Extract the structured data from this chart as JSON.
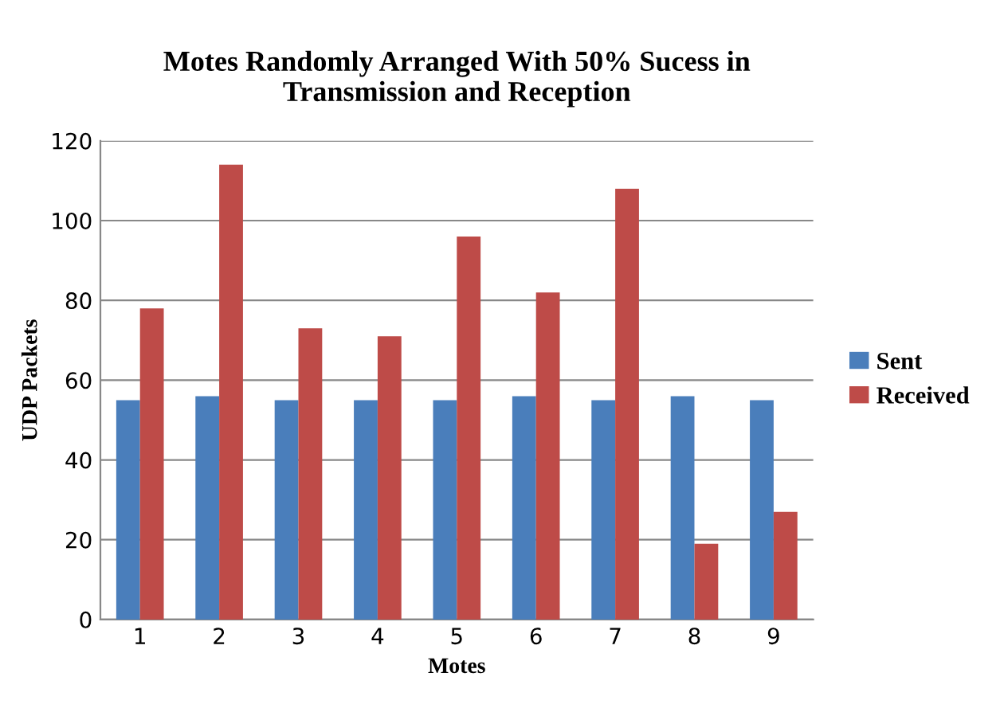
{
  "chart_data": {
    "type": "bar",
    "title": "Motes Randomly Arranged With 50% Sucess in\nTransmission and Reception",
    "xlabel": "Motes",
    "ylabel": "UDP Packets",
    "categories": [
      "1",
      "2",
      "3",
      "4",
      "5",
      "6",
      "7",
      "8",
      "9"
    ],
    "series": [
      {
        "name": "Sent",
        "color": "#4a7ebb",
        "values": [
          55,
          56,
          55,
          55,
          55,
          56,
          55,
          56,
          55
        ]
      },
      {
        "name": "Received",
        "color": "#be4b48",
        "values": [
          78,
          114,
          73,
          71,
          96,
          82,
          108,
          19,
          27
        ]
      }
    ],
    "ylim": [
      0,
      120
    ],
    "yticks": [
      0,
      20,
      40,
      60,
      80,
      100,
      120
    ],
    "grid": "y",
    "legend": "right"
  }
}
